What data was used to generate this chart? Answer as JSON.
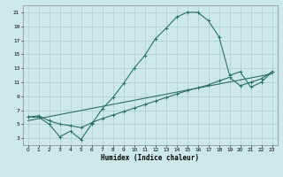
{
  "background_color": "#cce8e8",
  "grid_color": "#aacece",
  "line_color": "#2a7060",
  "xlim": [
    -0.5,
    23.5
  ],
  "ylim": [
    2,
    22
  ],
  "xlabel": "Humidex (Indice chaleur)",
  "xtick_vals": [
    0,
    1,
    2,
    3,
    4,
    5,
    6,
    7,
    8,
    9,
    10,
    11,
    12,
    13,
    14,
    15,
    16,
    17,
    18,
    19,
    20,
    21,
    22,
    23
  ],
  "ytick_vals": [
    3,
    5,
    7,
    9,
    11,
    13,
    15,
    17,
    19,
    21
  ],
  "line1_x": [
    0,
    1,
    2,
    3,
    4,
    5,
    6,
    7,
    8,
    9,
    10,
    11,
    12,
    13,
    14,
    15,
    16,
    17,
    18,
    19,
    20,
    21,
    22,
    23
  ],
  "line1_y": [
    6,
    6,
    5,
    3.2,
    4,
    2.8,
    5,
    7.2,
    8.8,
    10.8,
    13,
    14.8,
    17.2,
    18.7,
    20.3,
    21,
    21,
    19.8,
    17.5,
    12,
    12.5,
    10.3,
    11,
    12.5
  ],
  "line2_x": [
    0,
    1,
    2,
    3,
    4,
    5,
    6,
    7,
    8,
    9,
    10,
    11,
    12,
    13,
    14,
    15,
    16,
    17,
    18,
    19,
    20,
    21,
    22,
    23
  ],
  "line2_y": [
    6,
    6.2,
    5.5,
    5,
    4.8,
    4.5,
    5.2,
    5.8,
    6.3,
    6.8,
    7.3,
    7.8,
    8.3,
    8.8,
    9.3,
    9.8,
    10.2,
    10.6,
    11.2,
    11.7,
    10.5,
    11.0,
    11.5,
    12.5
  ],
  "line3_x": [
    0,
    23
  ],
  "line3_y": [
    5.5,
    12.2
  ]
}
